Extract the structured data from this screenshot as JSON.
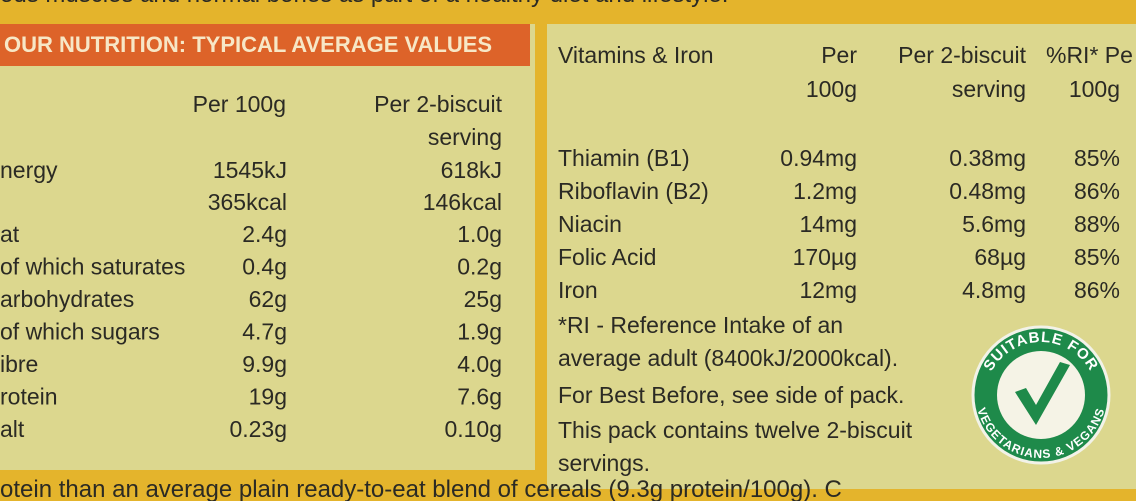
{
  "top_text": "ods muscles and normal bones as part of a healthy diet and lifestyle.",
  "bottom_text": "otein than an average plain ready-to-eat blend of cereals (9.3g protein/100g). C",
  "nutrition": {
    "title": "OUR NUTRITION: TYPICAL AVERAGE VALUES",
    "col_per_100g": "Per 100g",
    "col_per_serving": [
      "Per 2-biscuit",
      "serving"
    ],
    "rows": [
      {
        "label": "nergy",
        "per_100g": [
          "1545kJ",
          "365kcal"
        ],
        "per_serving": [
          "618kJ",
          "146kcal"
        ]
      },
      {
        "label": "at",
        "per_100g": [
          "2.4g"
        ],
        "per_serving": [
          "1.0g"
        ]
      },
      {
        "label": "of which saturates",
        "per_100g": [
          "0.4g"
        ],
        "per_serving": [
          "0.2g"
        ]
      },
      {
        "label": "arbohydrates",
        "per_100g": [
          "62g"
        ],
        "per_serving": [
          "25g"
        ]
      },
      {
        "label": "of which sugars",
        "per_100g": [
          "4.7g"
        ],
        "per_serving": [
          "1.9g"
        ]
      },
      {
        "label": "ibre",
        "per_100g": [
          "9.9g"
        ],
        "per_serving": [
          "4.0g"
        ]
      },
      {
        "label": "rotein",
        "per_100g": [
          "19g"
        ],
        "per_serving": [
          "7.6g"
        ]
      },
      {
        "label": "alt",
        "per_100g": [
          "0.23g"
        ],
        "per_serving": [
          "0.10g"
        ]
      }
    ]
  },
  "vitamins": {
    "title": "Vitamins & Iron",
    "col_per_100g": [
      "Per",
      "100g"
    ],
    "col_per_serving": [
      "Per 2-biscuit",
      "serving"
    ],
    "col_ri": [
      "%RI* Pe",
      "100g"
    ],
    "rows": [
      [
        "Thiamin (B1)",
        "0.94mg",
        "0.38mg",
        "85%"
      ],
      [
        "Riboflavin (B2)",
        "1.2mg",
        "0.48mg",
        "86%"
      ],
      [
        "Niacin",
        "14mg",
        "5.6mg",
        "88%"
      ],
      [
        "Folic Acid",
        "170µg",
        "68µg",
        "85%"
      ],
      [
        "Iron",
        "12mg",
        "4.8mg",
        "86%"
      ]
    ],
    "notes": [
      "*RI - Reference Intake of an",
      "average adult (8400kJ/2000kcal).",
      "For Best Before, see side of pack.",
      "This pack contains twelve 2-biscuit",
      "servings."
    ]
  },
  "badge": {
    "top": "SUITABLE FOR",
    "bottom": "VEGETARIANS & VEGANS"
  }
}
